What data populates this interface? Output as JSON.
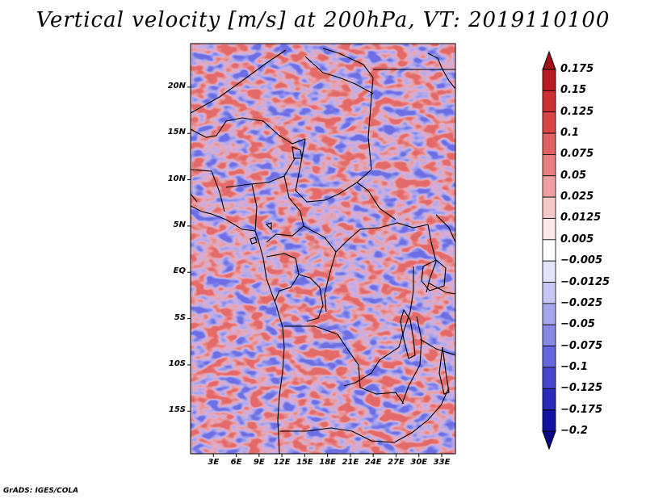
{
  "title": "Vertical velocity [m/s] at 200hPa, VT: 2019110100",
  "credit": "GrADS: IGES/COLA",
  "map": {
    "lat_labels": [
      "20N",
      "15N",
      "10N",
      "5N",
      "EQ",
      "5S",
      "10S",
      "15S"
    ],
    "lat_values": [
      20,
      15,
      10,
      5,
      0,
      -5,
      -10,
      -15
    ],
    "lon_labels": [
      "3E",
      "6E",
      "9E",
      "12E",
      "15E",
      "18E",
      "21E",
      "24E",
      "27E",
      "30E",
      "33E"
    ],
    "lon_values": [
      3,
      6,
      9,
      12,
      15,
      18,
      21,
      24,
      27,
      30,
      33
    ],
    "lat_range": [
      -19.6,
      24.7
    ],
    "lon_range": [
      0,
      34.8
    ]
  },
  "colorbar": {
    "labels": [
      "0.175",
      "0.15",
      "0.125",
      "0.1",
      "0.075",
      "0.05",
      "0.025",
      "0.0125",
      "0.005",
      "−0.005",
      "−0.0125",
      "−0.025",
      "−0.05",
      "−0.075",
      "−0.1",
      "−0.125",
      "−0.175",
      "−0.2"
    ],
    "colors": [
      "#a01418",
      "#b81c22",
      "#cc2f2f",
      "#d94545",
      "#e06262",
      "#e88080",
      "#f0a0a0",
      "#f7c8c8",
      "#fde9e9",
      "#ffffff",
      "#e3e3fb",
      "#c6c6f4",
      "#a6a6ee",
      "#8787e6",
      "#6767dd",
      "#4747cf",
      "#2a2ab8",
      "#1212a0",
      "#090985"
    ]
  },
  "colors": {
    "positive": "#e57777",
    "negative": "#7777e6",
    "land_border": "#000000"
  }
}
